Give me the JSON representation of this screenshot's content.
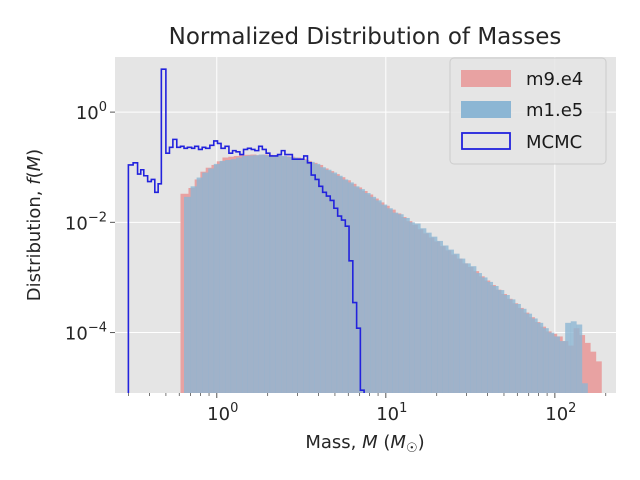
{
  "chart_data": {
    "type": "histogram",
    "title": "Normalized Distribution of Masses",
    "xlabel": "Mass, M (M☉)",
    "ylabel": "Distribution, f(M)",
    "x_scale": "log",
    "y_scale": "log",
    "xlim": [
      0.25,
      230
    ],
    "ylim": [
      8e-06,
      10
    ],
    "grid": true,
    "legend_position": "top-right",
    "x_ticks": [
      {
        "value": 1,
        "base": "10",
        "exp": "0"
      },
      {
        "value": 10,
        "base": "10",
        "exp": "1"
      },
      {
        "value": 100,
        "base": "10",
        "exp": "2"
      }
    ],
    "y_ticks": [
      {
        "value": 1,
        "base": "10",
        "exp": "0"
      },
      {
        "value": 0.01,
        "base": "10",
        "exp": "−2"
      },
      {
        "value": 0.0001,
        "base": "10",
        "exp": "−4"
      }
    ],
    "colors": {
      "m9e4": "#e8a2a2",
      "m1e5": "#8cb6d4",
      "overlap": "#9299b5",
      "mcmc": "#2222dd",
      "background": "#e5e5e5",
      "grid": "#ffffff"
    },
    "series": [
      {
        "name": "m9.e4",
        "style": "filled",
        "bin_edges": [
          0.61,
          0.68,
          0.74,
          0.8,
          0.86,
          0.93,
          1.0,
          1.08,
          1.17,
          1.26,
          1.36,
          1.47,
          1.58,
          1.71,
          1.84,
          1.99,
          2.14,
          2.31,
          2.49,
          2.69,
          2.9,
          3.13,
          3.38,
          3.64,
          3.93,
          4.24,
          4.57,
          4.93,
          5.32,
          5.74,
          6.19,
          6.68,
          7.21,
          7.77,
          8.39,
          9.05,
          9.76,
          10.5,
          11.4,
          12.3,
          13.2,
          14.3,
          15.4,
          16.6,
          17.9,
          19.3,
          20.9,
          22.5,
          24.3,
          26.2,
          28.3,
          30.5,
          32.9,
          35.5,
          38.3,
          41.3,
          44.6,
          48.1,
          51.9,
          56.0,
          60.4,
          65.2,
          70.3,
          75.9,
          81.9,
          88.3,
          95.3,
          102.8,
          110.9,
          119.7,
          129.1,
          139.3,
          150.3,
          162.1,
          174.9,
          188.7
        ],
        "values": [
          0.033,
          0.042,
          0.06,
          0.083,
          0.098,
          0.11,
          0.128,
          0.15,
          0.155,
          0.16,
          0.165,
          0.168,
          0.17,
          0.165,
          0.17,
          0.168,
          0.16,
          0.16,
          0.158,
          0.155,
          0.15,
          0.14,
          0.13,
          0.12,
          0.11,
          0.095,
          0.085,
          0.075,
          0.066,
          0.058,
          0.05,
          0.043,
          0.037,
          0.032,
          0.027,
          0.023,
          0.02,
          0.017,
          0.0145,
          0.0125,
          0.0105,
          0.009,
          0.0075,
          0.0063,
          0.0053,
          0.0045,
          0.0037,
          0.0031,
          0.0026,
          0.0022,
          0.0018,
          0.00155,
          0.0013,
          0.00105,
          0.00088,
          0.00073,
          0.0006,
          0.0005,
          0.00041,
          0.00034,
          0.00028,
          0.00023,
          0.00019,
          0.000155,
          0.000128,
          0.000105,
          9.5e-05,
          8.5e-05,
          7e-05,
          5.8e-05,
          0.00012,
          9e-05,
          6.5e-05,
          4.5e-05,
          3e-05
        ]
      },
      {
        "name": "m1.e5",
        "style": "filled",
        "bin_edges": [
          0.64,
          0.7,
          0.76,
          0.82,
          0.89,
          0.96,
          1.04,
          1.12,
          1.21,
          1.3,
          1.41,
          1.52,
          1.64,
          1.77,
          1.91,
          2.06,
          2.22,
          2.4,
          2.59,
          2.79,
          3.01,
          3.25,
          3.51,
          3.78,
          4.08,
          4.4,
          4.75,
          5.13,
          5.53,
          5.97,
          6.44,
          6.95,
          7.49,
          8.09,
          8.72,
          9.41,
          10.15,
          10.95,
          11.8,
          12.7,
          13.8,
          14.8,
          16.0,
          17.3,
          18.6,
          20.1,
          21.7,
          23.4,
          25.2,
          27.2,
          29.4,
          31.7,
          34.2,
          36.9,
          39.8,
          42.9,
          46.3,
          50.0,
          53.9,
          58.2,
          62.7,
          67.7,
          73.0,
          78.8,
          85.0,
          91.7,
          98.9,
          106.7,
          115.1,
          124.2,
          134.0,
          144.6,
          156.0
        ],
        "values": [
          0.029,
          0.045,
          0.065,
          0.08,
          0.095,
          0.115,
          0.13,
          0.135,
          0.14,
          0.15,
          0.16,
          0.163,
          0.165,
          0.17,
          0.165,
          0.16,
          0.165,
          0.16,
          0.155,
          0.15,
          0.145,
          0.135,
          0.125,
          0.115,
          0.1,
          0.09,
          0.08,
          0.07,
          0.06,
          0.053,
          0.045,
          0.04,
          0.034,
          0.029,
          0.025,
          0.021,
          0.018,
          0.015,
          0.014,
          0.012,
          0.01,
          0.0095,
          0.0078,
          0.0065,
          0.0055,
          0.0046,
          0.0038,
          0.0032,
          0.0027,
          0.0022,
          0.0018,
          0.0016,
          0.0012,
          0.001,
          0.00083,
          0.0007,
          0.00059,
          0.00048,
          0.0004,
          0.00033,
          0.00027,
          0.00022,
          0.00018,
          0.00015,
          0.00012,
          0.0001,
          8.5e-05,
          7e-05,
          0.00015,
          0.00016,
          0.00014,
          1.2e-05
        ]
      },
      {
        "name": "MCMC",
        "style": "step",
        "bin_edges": [
          0.3,
          0.32,
          0.34,
          0.355,
          0.37,
          0.39,
          0.41,
          0.43,
          0.45,
          0.47,
          0.5,
          0.525,
          0.55,
          0.58,
          0.61,
          0.64,
          0.67,
          0.71,
          0.74,
          0.78,
          0.82,
          0.86,
          0.91,
          0.96,
          1.01,
          1.06,
          1.12,
          1.18,
          1.24,
          1.3,
          1.37,
          1.44,
          1.52,
          1.6,
          1.68,
          1.77,
          1.86,
          1.96,
          2.06,
          2.17,
          2.29,
          2.41,
          2.53,
          2.66,
          2.8,
          2.95,
          3.11,
          3.27,
          3.44,
          3.62,
          3.82,
          4.02,
          4.23,
          4.45,
          4.69,
          4.93,
          5.19,
          5.47,
          5.76,
          6.06,
          6.38,
          6.72,
          7.07,
          7.44
        ],
        "values": [
          0.11,
          0.12,
          0.075,
          0.09,
          0.07,
          0.055,
          0.06,
          0.035,
          0.05,
          6.0,
          0.18,
          0.23,
          0.32,
          0.23,
          0.24,
          0.22,
          0.23,
          0.22,
          0.24,
          0.21,
          0.23,
          0.22,
          0.25,
          0.3,
          0.27,
          0.22,
          0.24,
          0.18,
          0.2,
          0.19,
          0.17,
          0.21,
          0.22,
          0.21,
          0.2,
          0.24,
          0.21,
          0.18,
          0.16,
          0.16,
          0.17,
          0.2,
          0.17,
          0.17,
          0.14,
          0.14,
          0.14,
          0.16,
          0.12,
          0.072,
          0.06,
          0.045,
          0.035,
          0.03,
          0.025,
          0.018,
          0.013,
          0.011,
          0.0085,
          0.002,
          0.00035,
          0.00012,
          9e-06
        ]
      }
    ]
  }
}
